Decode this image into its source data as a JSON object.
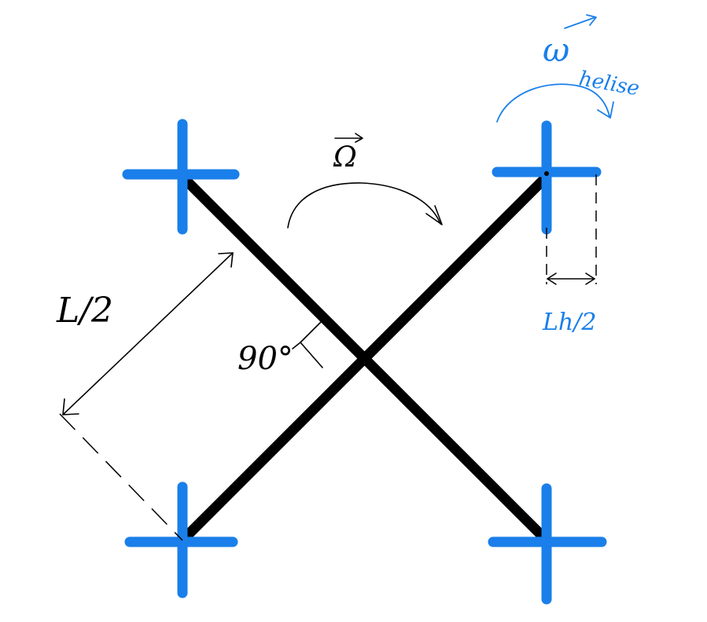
{
  "labels": {
    "arm_length": "L/2",
    "angle": "90°",
    "rotation_vector": "Ω",
    "prop_speed_main": "ω",
    "prop_speed_sub": "helise",
    "prop_length": "Lh/2"
  },
  "colors": {
    "frame": "#000000",
    "propeller": "#1a7fea",
    "annotation_blue": "#1a7fea"
  }
}
